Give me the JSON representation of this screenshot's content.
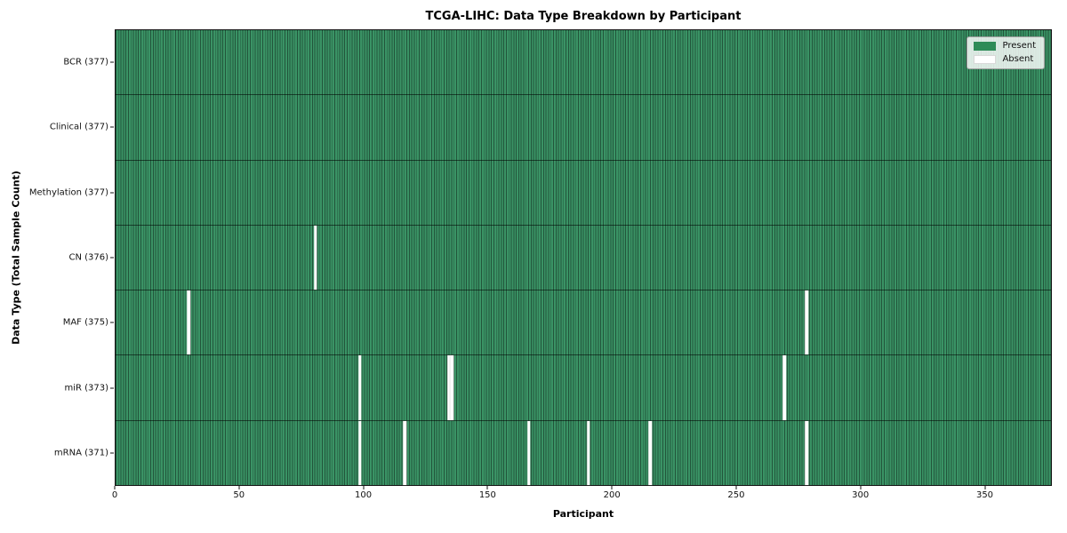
{
  "chart_data": {
    "type": "heatmap",
    "title": "TCGA-LIHC: Data Type Breakdown by Participant",
    "xlabel": "Participant",
    "ylabel": "Data Type (Total Sample Count)",
    "n_participants": 377,
    "x_range": [
      0,
      377
    ],
    "x_ticks": [
      0,
      50,
      100,
      150,
      200,
      250,
      300,
      350
    ],
    "grid": false,
    "legend": {
      "position": "upper right",
      "items": [
        {
          "label": "Present",
          "color": "#2e8b57"
        },
        {
          "label": "Absent",
          "color": "#ffffff"
        }
      ]
    },
    "colors": {
      "present": "#2e8b57",
      "absent": "#ffffff"
    },
    "rows": [
      {
        "label": "BCR",
        "total": 377,
        "display": "BCR (377)",
        "absent_participants": []
      },
      {
        "label": "Clinical",
        "total": 377,
        "display": "Clinical (377)",
        "absent_participants": []
      },
      {
        "label": "Methylation",
        "total": 377,
        "display": "Methylation (377)",
        "absent_participants": []
      },
      {
        "label": "CN",
        "total": 376,
        "display": "CN (376)",
        "absent_participants": [
          80
        ]
      },
      {
        "label": "MAF",
        "total": 375,
        "display": "MAF (375)",
        "absent_participants": [
          29,
          278
        ]
      },
      {
        "label": "miR",
        "total": 373,
        "display": "miR (373)",
        "absent_participants": [
          98,
          134,
          135,
          269
        ]
      },
      {
        "label": "mRNA",
        "total": 371,
        "display": "mRNA (371)",
        "absent_participants": [
          98,
          116,
          166,
          190,
          215,
          278
        ]
      }
    ]
  }
}
